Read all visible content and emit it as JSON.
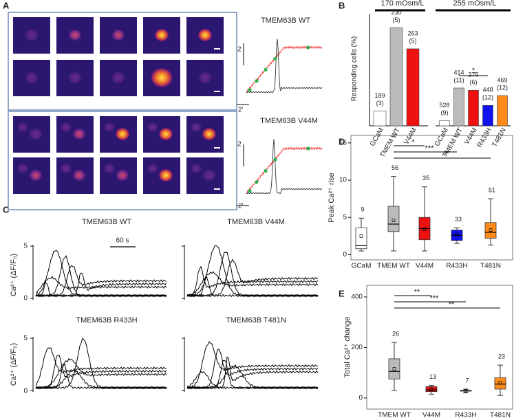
{
  "panel_labels": [
    "A",
    "B",
    "C",
    "D",
    "E"
  ],
  "panel_a": {
    "rows": [
      {
        "title": "TMEM63B WT",
        "scale_y": "2",
        "scale_x": "2'"
      },
      {
        "title": "TMEM63B V44M",
        "scale_y": "2",
        "scale_x": "2'"
      }
    ]
  },
  "panel_c": {
    "titles": [
      "TMEM63B WT",
      "TMEM63B V44M",
      "TMEM63B R433H",
      "TMEM63B T481N"
    ],
    "y_label": "Ca²⁺ (ΔF/F₀)",
    "y_tick_labels": [
      "5",
      "0"
    ],
    "scale_bar": "60 s"
  },
  "chart_data": [
    {
      "type": "bar",
      "y_label": "Responding cells (%)",
      "group_labels": [
        "170 mOsm/L",
        "255 mOsm/L"
      ],
      "categories": [
        "GCaM",
        "TMEM WT",
        "V44M",
        "GCaM",
        "TMEM WT",
        "V44M",
        "R433H",
        "T481N"
      ],
      "values": [
        5.3,
        35,
        27.5,
        1.8,
        13.5,
        12.7,
        7.3,
        10.8
      ],
      "colors": [
        "#ffffff",
        "#bbbbbb",
        "#ee1111",
        "#ffffff",
        "#bbbbbb",
        "#ee1111",
        "#1111ee",
        "#ff8c1a"
      ],
      "n_labels": [
        [
          "189",
          "(3)"
        ],
        [
          "230",
          "(5)"
        ],
        [
          "263",
          "(5)"
        ],
        [
          "528",
          "(9)"
        ],
        [
          "414",
          "(11)"
        ],
        [
          "275",
          "(6)"
        ],
        [
          "448",
          "(12)"
        ],
        [
          "469",
          "(12)"
        ]
      ],
      "significance": [
        "*"
      ],
      "ylim": [
        0,
        40
      ]
    },
    {
      "type": "box",
      "y_label": "Peak Ca²⁺ rise",
      "categories": [
        "GCaM",
        "TMEM WT",
        "V44M",
        "R433H",
        "T481N"
      ],
      "n": [
        9,
        56,
        35,
        33,
        51
      ],
      "boxes": [
        {
          "min": 0.5,
          "q1": 0.8,
          "median": 1.2,
          "q3": 3.6,
          "max": 4.9,
          "mean": 2.5
        },
        {
          "min": 0.5,
          "q1": 3.1,
          "median": 4.1,
          "q3": 6.5,
          "max": 10.5,
          "mean": 4.6
        },
        {
          "min": 0.5,
          "q1": 2.0,
          "median": 3.5,
          "q3": 5.0,
          "max": 9.1,
          "mean": 3.4
        },
        {
          "min": 1.5,
          "q1": 1.9,
          "median": 2.6,
          "q3": 3.3,
          "max": 3.6,
          "mean": 2.7
        },
        {
          "min": 1.3,
          "q1": 2.2,
          "median": 3.0,
          "q3": 4.3,
          "max": 7.5,
          "mean": 3.3
        }
      ],
      "colors": [
        "#ffffff",
        "#bbbbbb",
        "#ee1111",
        "#1111ee",
        "#ff8c1a"
      ],
      "significance": [
        "*",
        "***",
        "*"
      ],
      "ylim": [
        -0.7,
        16
      ],
      "yticks": [
        0,
        5,
        10,
        15
      ]
    },
    {
      "type": "box",
      "y_label": "Total Ca²⁺ change",
      "categories": [
        "TMEM WT",
        "V44M",
        "R433H",
        "T481N"
      ],
      "n": [
        26,
        13,
        7,
        23
      ],
      "boxes": [
        {
          "min": 30,
          "q1": 75,
          "median": 105,
          "q3": 155,
          "max": 220,
          "mean": 115
        },
        {
          "min": 15,
          "q1": 25,
          "median": 32,
          "q3": 45,
          "max": 50,
          "mean": 35
        },
        {
          "min": 20,
          "q1": 27,
          "median": 28,
          "q3": 30,
          "max": 35,
          "mean": 28
        },
        {
          "min": 10,
          "q1": 35,
          "median": 55,
          "q3": 80,
          "max": 130,
          "mean": 60
        }
      ],
      "colors": [
        "#bbbbbb",
        "#ee1111",
        "#1111ee",
        "#ff8c1a"
      ],
      "significance": [
        "**",
        "***",
        "**"
      ],
      "ylim": [
        -44,
        446
      ],
      "yticks": [
        0,
        200,
        400
      ]
    }
  ]
}
